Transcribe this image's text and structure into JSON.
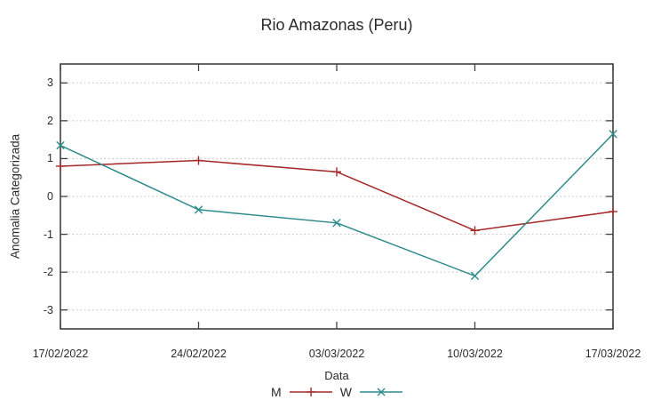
{
  "chart_data": {
    "type": "line",
    "title": "Rio Amazonas (Peru)",
    "xlabel": "Data",
    "ylabel": "Anomalia Categorizada",
    "categories": [
      "17/02/2022",
      "24/02/2022",
      "03/03/2022",
      "10/03/2022",
      "17/03/2022"
    ],
    "y_ticks": [
      3,
      2,
      1,
      0,
      -1,
      -2,
      -3
    ],
    "ylim": [
      -3.5,
      3.5
    ],
    "grid": "horizontal-dotted",
    "legend_position": "bottom-center",
    "series": [
      {
        "name": "M",
        "color": "#a52828",
        "marker": "plus",
        "values": [
          0.8,
          0.95,
          0.65,
          -0.9,
          -0.4
        ]
      },
      {
        "name": "W",
        "color": "#2e8b8b",
        "marker": "cross",
        "values": [
          1.35,
          -0.35,
          -0.7,
          -2.1,
          1.65
        ]
      }
    ],
    "colors": {
      "border": "#404040",
      "grid": "#bdbdbd",
      "text": "#2b2b2b"
    }
  }
}
